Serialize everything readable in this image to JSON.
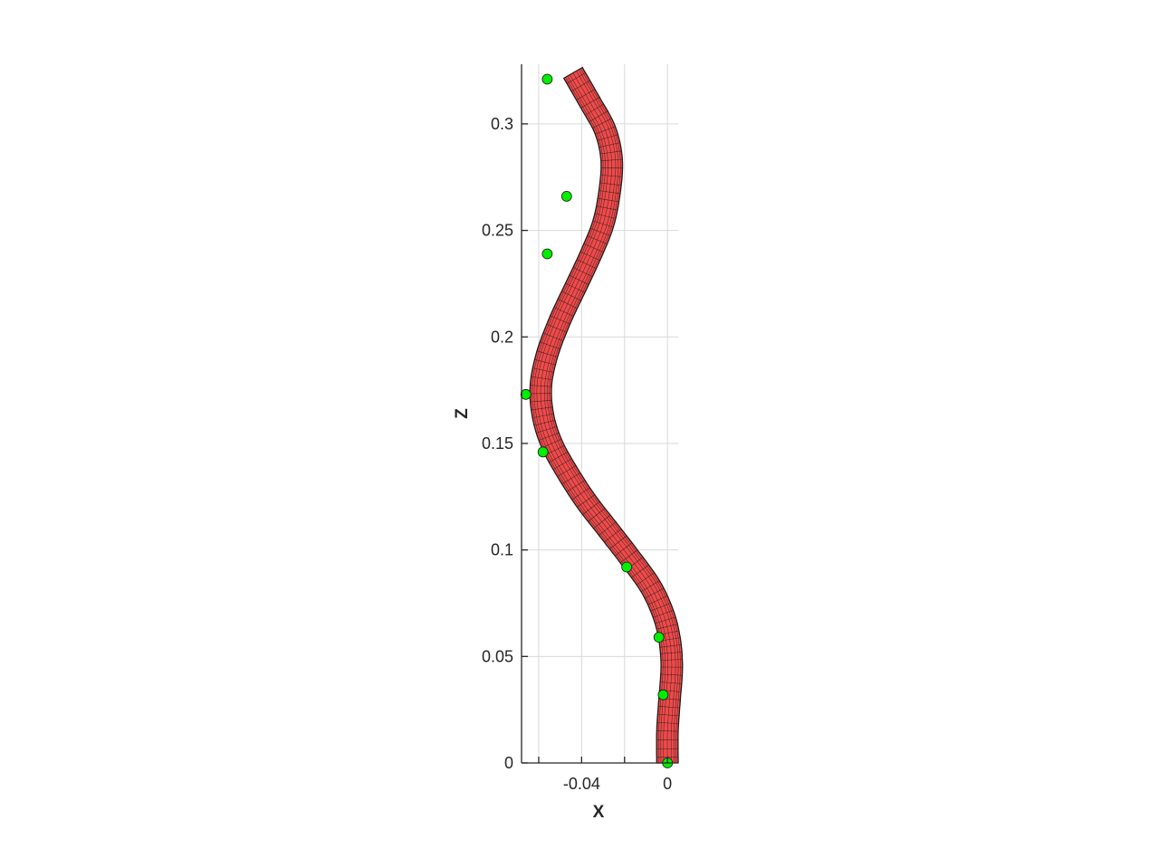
{
  "chart_data": {
    "type": "line",
    "title": "",
    "xlabel": "X",
    "ylabel": "Z",
    "xlim": [
      -0.068,
      0.005
    ],
    "ylim": [
      0,
      0.328
    ],
    "grid": true,
    "x_ticks": [
      {
        "value": -0.06,
        "label": ""
      },
      {
        "value": -0.04,
        "label": "-0.04"
      },
      {
        "value": -0.02,
        "label": ""
      },
      {
        "value": 0,
        "label": "0"
      }
    ],
    "y_ticks": [
      {
        "value": 0,
        "label": "0"
      },
      {
        "value": 0.05,
        "label": "0.05"
      },
      {
        "value": 0.1,
        "label": "0.1"
      },
      {
        "value": 0.15,
        "label": "0.15"
      },
      {
        "value": 0.2,
        "label": "0.2"
      },
      {
        "value": 0.25,
        "label": "0.25"
      },
      {
        "value": 0.3,
        "label": "0.3"
      }
    ],
    "series": [
      {
        "kind": "tube",
        "color": "#f04a4a",
        "mesh_color": "#1a1a1a",
        "x": [
          0.0,
          0.0,
          0.001,
          0.002,
          0.001,
          -0.002,
          -0.008,
          -0.018,
          -0.028,
          -0.038,
          -0.047,
          -0.054,
          -0.058,
          -0.059,
          -0.056,
          -0.05,
          -0.043,
          -0.036,
          -0.03,
          -0.027,
          -0.026,
          -0.029,
          -0.036,
          -0.044
        ],
        "z": [
          0.0,
          0.015,
          0.03,
          0.045,
          0.058,
          0.07,
          0.083,
          0.097,
          0.11,
          0.123,
          0.137,
          0.15,
          0.163,
          0.177,
          0.192,
          0.208,
          0.223,
          0.238,
          0.253,
          0.268,
          0.283,
          0.297,
          0.31,
          0.324
        ]
      },
      {
        "kind": "markers",
        "color": "#00ee00",
        "x": [
          0.0,
          -0.002,
          -0.004,
          -0.019,
          -0.058,
          -0.066,
          -0.056,
          -0.047,
          -0.056
        ],
        "z": [
          0.0,
          0.032,
          0.059,
          0.092,
          0.146,
          0.173,
          0.239,
          0.266,
          0.321
        ]
      }
    ]
  }
}
